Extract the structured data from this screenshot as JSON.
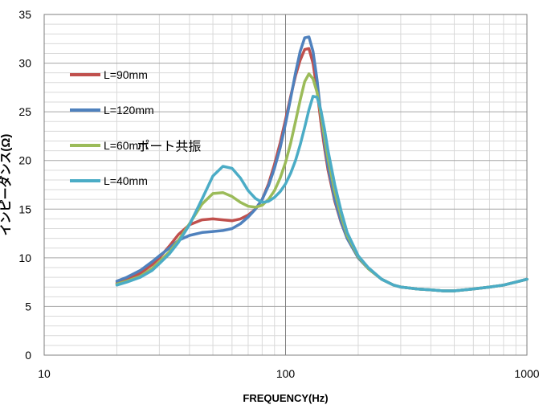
{
  "chart_data": {
    "type": "line",
    "title": "",
    "xlabel": "FREQUENCY(Hz)",
    "ylabel": "インピーダンス(Ω)",
    "xscale": "log",
    "xlim": [
      10,
      1000
    ],
    "ylim": [
      0,
      35
    ],
    "grid": "on",
    "legend_placement": "left",
    "x_tick_labels": [
      "10",
      "100",
      "1000"
    ],
    "y_tick_labels": [
      "0",
      "5",
      "10",
      "15",
      "20",
      "25",
      "30",
      "35"
    ],
    "annotations": [
      {
        "text": "ポート共振",
        "x": 49,
        "y": 21.5
      }
    ],
    "series": [
      {
        "name": "L=90mm",
        "color": "#C0504D",
        "x": [
          20,
          22,
          25,
          28,
          30,
          33,
          36,
          40,
          45,
          50,
          55,
          60,
          65,
          70,
          75,
          80,
          85,
          90,
          95,
          100,
          105,
          110,
          115,
          120,
          125,
          130,
          135,
          140,
          145,
          150,
          160,
          170,
          180,
          200,
          220,
          250,
          280,
          300,
          350,
          400,
          450,
          500,
          600,
          700,
          800,
          900,
          1000
        ],
        "y": [
          7.4,
          7.8,
          8.4,
          9.3,
          10.0,
          11.2,
          12.4,
          13.4,
          13.9,
          14.0,
          13.9,
          13.8,
          14.0,
          14.4,
          15.0,
          16.0,
          17.6,
          19.6,
          21.8,
          24.2,
          26.6,
          28.7,
          30.3,
          31.4,
          31.5,
          30.0,
          27.2,
          24.0,
          21.3,
          19.0,
          15.8,
          13.6,
          12.0,
          10.0,
          8.9,
          7.8,
          7.2,
          7.0,
          6.8,
          6.7,
          6.6,
          6.6,
          6.8,
          7.0,
          7.2,
          7.5,
          7.8
        ]
      },
      {
        "name": "L=120mm",
        "color": "#4F81BD",
        "x": [
          20,
          22,
          25,
          28,
          30,
          33,
          36,
          40,
          45,
          50,
          55,
          60,
          65,
          70,
          75,
          80,
          85,
          90,
          95,
          100,
          105,
          110,
          115,
          120,
          125,
          130,
          135,
          140,
          145,
          150,
          160,
          170,
          180,
          200,
          220,
          250,
          280,
          300,
          350,
          400,
          450,
          500,
          600,
          700,
          800,
          900,
          1000
        ],
        "y": [
          7.6,
          8.0,
          8.7,
          9.6,
          10.2,
          11.0,
          11.8,
          12.3,
          12.6,
          12.7,
          12.8,
          13.0,
          13.5,
          14.2,
          15.0,
          16.0,
          17.4,
          19.2,
          21.3,
          23.8,
          26.4,
          29.0,
          31.2,
          32.6,
          32.7,
          31.2,
          28.3,
          24.8,
          21.8,
          19.4,
          16.0,
          13.7,
          12.0,
          10.0,
          8.9,
          7.8,
          7.2,
          7.0,
          6.8,
          6.7,
          6.6,
          6.6,
          6.8,
          7.0,
          7.2,
          7.5,
          7.8
        ]
      },
      {
        "name": "L=60mm",
        "color": "#9BBB59",
        "x": [
          20,
          22,
          25,
          28,
          30,
          33,
          36,
          40,
          45,
          50,
          55,
          60,
          65,
          70,
          75,
          80,
          85,
          90,
          95,
          100,
          105,
          110,
          115,
          120,
          125,
          130,
          135,
          140,
          145,
          150,
          160,
          170,
          180,
          200,
          220,
          250,
          280,
          300,
          350,
          400,
          450,
          500,
          600,
          700,
          800,
          900,
          1000
        ],
        "y": [
          7.3,
          7.6,
          8.1,
          8.9,
          9.6,
          10.6,
          11.8,
          13.5,
          15.5,
          16.6,
          16.7,
          16.3,
          15.7,
          15.3,
          15.2,
          15.4,
          16.0,
          16.9,
          18.2,
          19.8,
          21.8,
          24.0,
          26.2,
          28.1,
          28.9,
          28.4,
          27.0,
          24.8,
          22.4,
          20.2,
          16.8,
          14.3,
          12.3,
          10.1,
          8.9,
          7.8,
          7.2,
          7.0,
          6.8,
          6.7,
          6.6,
          6.6,
          6.8,
          7.0,
          7.2,
          7.5,
          7.8
        ]
      },
      {
        "name": "L=40mm",
        "color": "#4BACC6",
        "x": [
          20,
          22,
          25,
          28,
          30,
          33,
          36,
          40,
          45,
          50,
          55,
          60,
          65,
          70,
          75,
          80,
          85,
          90,
          95,
          100,
          105,
          110,
          115,
          120,
          125,
          130,
          135,
          140,
          145,
          150,
          160,
          170,
          180,
          200,
          220,
          250,
          280,
          300,
          350,
          400,
          450,
          500,
          600,
          700,
          800,
          900,
          1000
        ],
        "y": [
          7.2,
          7.5,
          8.0,
          8.7,
          9.4,
          10.4,
          11.6,
          13.4,
          16.0,
          18.4,
          19.4,
          19.2,
          18.2,
          16.9,
          16.1,
          15.7,
          15.8,
          16.2,
          16.8,
          17.6,
          18.7,
          20.0,
          21.6,
          23.4,
          25.2,
          26.6,
          26.5,
          25.2,
          23.2,
          21.0,
          17.5,
          14.8,
          12.6,
          10.2,
          9.0,
          7.8,
          7.2,
          7.0,
          6.8,
          6.7,
          6.6,
          6.6,
          6.8,
          7.0,
          7.2,
          7.5,
          7.8
        ]
      }
    ]
  }
}
